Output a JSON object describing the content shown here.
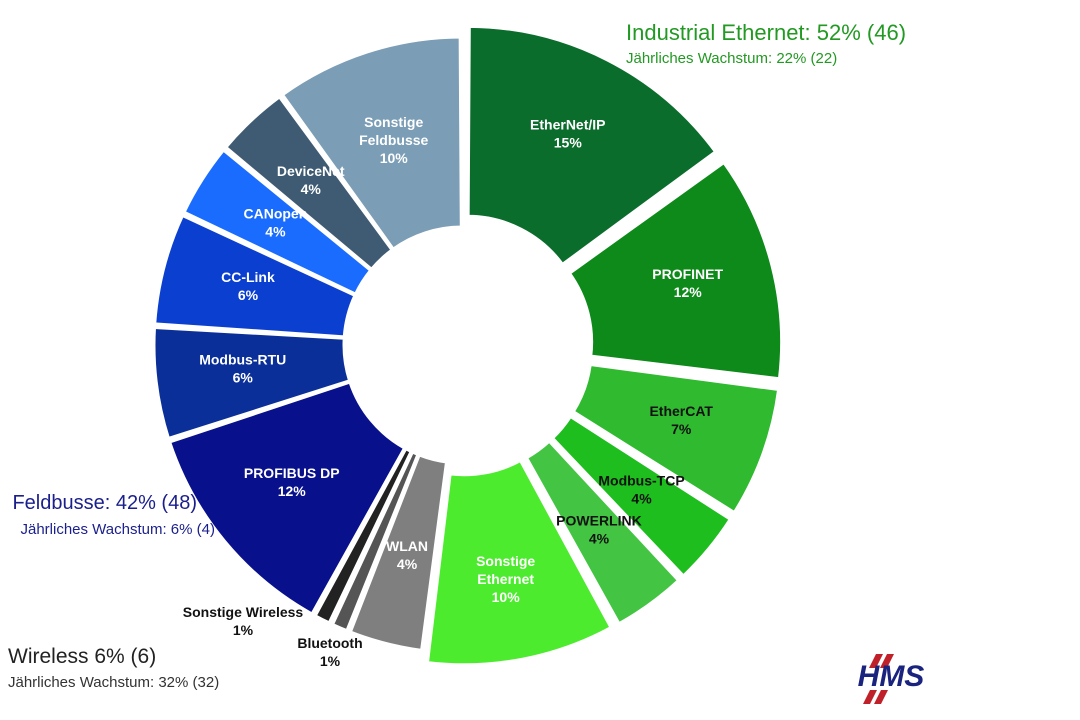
{
  "chart_data": {
    "type": "pie",
    "style": "donut",
    "slices": [
      {
        "label_lines": [
          "EtherNet/IP"
        ],
        "pct_label": "15%",
        "value": 15,
        "group": "industrial_ethernet",
        "color": "#0b6d2c"
      },
      {
        "label_lines": [
          "PROFINET"
        ],
        "pct_label": "12%",
        "value": 12,
        "group": "industrial_ethernet",
        "color": "#0d8a1a"
      },
      {
        "label_lines": [
          "EtherCAT"
        ],
        "pct_label": "7%",
        "value": 7,
        "group": "industrial_ethernet",
        "color": "#2fba2f"
      },
      {
        "label_lines": [
          "Modbus-TCP"
        ],
        "pct_label": "4%",
        "value": 4,
        "group": "industrial_ethernet",
        "color": "#1dbe1d"
      },
      {
        "label_lines": [
          "POWERLINK"
        ],
        "pct_label": "4%",
        "value": 4,
        "group": "industrial_ethernet",
        "color": "#43c543"
      },
      {
        "label_lines": [
          "Sonstige",
          "Ethernet"
        ],
        "pct_label": "10%",
        "value": 10,
        "group": "industrial_ethernet",
        "color": "#4deb2e"
      },
      {
        "label_lines": [
          "WLAN"
        ],
        "pct_label": "4%",
        "value": 4,
        "group": "wireless",
        "color": "#7f7f7f"
      },
      {
        "label_lines": [
          "Bluetooth"
        ],
        "pct_label": "1%",
        "value": 1,
        "group": "wireless",
        "color": "#555555"
      },
      {
        "label_lines": [
          "Sonstige Wireless"
        ],
        "pct_label": "1%",
        "value": 1,
        "group": "wireless",
        "color": "#222222"
      },
      {
        "label_lines": [
          "PROFIBUS DP"
        ],
        "pct_label": "12%",
        "value": 12,
        "group": "feldbusse",
        "color": "#08108c"
      },
      {
        "label_lines": [
          "Modbus-RTU"
        ],
        "pct_label": "6%",
        "value": 6,
        "group": "feldbusse",
        "color": "#0a2f99"
      },
      {
        "label_lines": [
          "CC-Link"
        ],
        "pct_label": "6%",
        "value": 6,
        "group": "feldbusse",
        "color": "#0b3fcf"
      },
      {
        "label_lines": [
          "CANopen"
        ],
        "pct_label": "4%",
        "value": 4,
        "group": "feldbusse",
        "color": "#1a6cff"
      },
      {
        "label_lines": [
          "DeviceNet"
        ],
        "pct_label": "4%",
        "value": 4,
        "group": "feldbusse",
        "color": "#3f5b73"
      },
      {
        "label_lines": [
          "Sonstige",
          "Feldbusse"
        ],
        "pct_label": "10%",
        "value": 10,
        "group": "feldbusse",
        "color": "#7b9db5"
      }
    ],
    "groups": {
      "industrial_ethernet": {
        "title": "Industrial Ethernet: 52% (46)",
        "subtitle": "Jährliches Wachstum: 22% (22)",
        "color": "#229922"
      },
      "feldbusse": {
        "title": "Feldbusse: 42% (48)",
        "subtitle": "Jährliches Wachstum: 6% (4)",
        "color": "#1a1f8c"
      },
      "wireless": {
        "title": "Wireless 6% (6)",
        "subtitle": "Jährliches Wachstum: 32% (32)",
        "color": "#222222"
      }
    }
  },
  "logo": {
    "text": "HMS",
    "color": "#1a237e",
    "accent": "#c0202a"
  }
}
